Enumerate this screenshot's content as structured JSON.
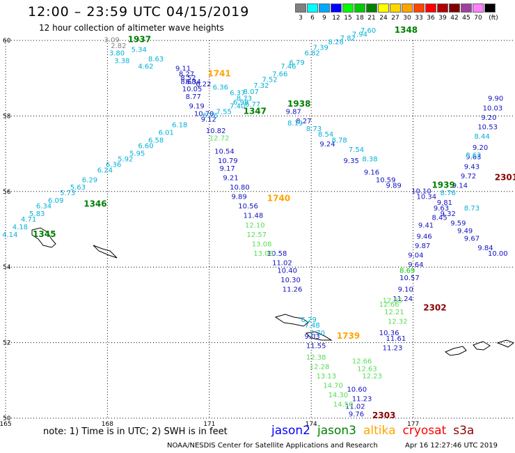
{
  "header": {
    "title": "12:00 – 23:59 UTC 04/15/2019",
    "subtitle": "12 hour collection of altimeter wave heights"
  },
  "legend": {
    "unit": "(ft)",
    "bins": [
      {
        "label": "3",
        "color": "#808080"
      },
      {
        "label": "6",
        "color": "#00ffff"
      },
      {
        "label": "9",
        "color": "#00a8ff"
      },
      {
        "label": "12",
        "color": "#0000ff"
      },
      {
        "label": "15",
        "color": "#00ff00"
      },
      {
        "label": "18",
        "color": "#00cc00"
      },
      {
        "label": "21",
        "color": "#008000"
      },
      {
        "label": "24",
        "color": "#ffff00"
      },
      {
        "label": "27",
        "color": "#ffd700"
      },
      {
        "label": "30",
        "color": "#ffa500"
      },
      {
        "label": "33",
        "color": "#ff4500"
      },
      {
        "label": "36",
        "color": "#ff0000"
      },
      {
        "label": "39",
        "color": "#b00000"
      },
      {
        "label": "42",
        "color": "#800000"
      },
      {
        "label": "45",
        "color": "#a040a0"
      },
      {
        "label": "70",
        "color": "#ff80ff"
      },
      {
        "label": "",
        "color": "#000000"
      }
    ]
  },
  "map": {
    "lon_range": [
      165,
      180
    ],
    "lat_range": [
      50,
      60
    ],
    "lon_ticks": [
      "165",
      "168",
      "171",
      "174",
      "177"
    ],
    "lat_ticks": [
      "60",
      "58",
      "56",
      "54",
      "52",
      "50"
    ],
    "lon_tick_values": [
      165,
      168,
      171,
      174,
      177
    ],
    "lat_tick_values": [
      60,
      58,
      56,
      54,
      52,
      50
    ]
  },
  "tracks": [
    {
      "satellite": "jason2",
      "points": [
        [
          "9.11",
          170.0,
          59.2
        ],
        [
          "8.27",
          170.1,
          59.05
        ],
        [
          "8.52",
          170.15,
          58.95
        ],
        [
          "8.68",
          170.15,
          58.85
        ],
        [
          "6.34",
          170.3,
          58.85
        ],
        [
          "6.22",
          170.6,
          58.78
        ],
        [
          "10.05",
          170.2,
          58.65
        ],
        [
          "8.77",
          170.3,
          58.45
        ],
        [
          "9.19",
          170.4,
          58.2
        ],
        [
          "10.70",
          170.55,
          58.0
        ],
        [
          "9.12",
          170.75,
          57.85
        ],
        [
          "10.82",
          170.9,
          57.55
        ],
        [
          "10.54",
          171.15,
          57.0
        ],
        [
          "10.79",
          171.25,
          56.75
        ],
        [
          "9.17",
          171.3,
          56.55
        ],
        [
          "9.21",
          171.4,
          56.3
        ],
        [
          "10.80",
          171.6,
          56.05
        ],
        [
          "9.89",
          171.65,
          55.8
        ],
        [
          "10.56",
          171.85,
          55.55
        ],
        [
          "11.48",
          172.0,
          55.3
        ],
        [
          "10.58",
          172.7,
          54.3
        ],
        [
          "11.02",
          172.85,
          54.05
        ],
        [
          "10.40",
          173.0,
          53.85
        ],
        [
          "10.30",
          173.1,
          53.6
        ],
        [
          "11.26",
          173.15,
          53.35
        ],
        [
          "9.03",
          173.8,
          52.1
        ],
        [
          "11.55",
          173.85,
          51.85
        ],
        [
          "10.60",
          175.05,
          50.7
        ],
        [
          "11.23",
          175.2,
          50.45
        ],
        [
          "11.02",
          175.0,
          50.25
        ],
        [
          "9.76",
          175.1,
          50.05
        ],
        [
          "10.36",
          176.0,
          52.2
        ],
        [
          "11.23",
          176.1,
          51.8
        ],
        [
          "11.61",
          176.2,
          52.05
        ],
        [
          "11.24",
          176.4,
          53.1
        ],
        [
          "9.10",
          176.55,
          53.35
        ],
        [
          "10.57",
          176.6,
          53.65
        ],
        [
          "9.64",
          176.85,
          54.0
        ],
        [
          "9.04",
          176.85,
          54.25
        ],
        [
          "9.87",
          177.05,
          54.5
        ],
        [
          "9.46",
          177.1,
          54.75
        ],
        [
          "9.41",
          177.15,
          55.05
        ],
        [
          "8.45",
          177.55,
          55.25
        ],
        [
          "9.32",
          177.8,
          55.35
        ],
        [
          "9.63",
          177.6,
          55.5
        ],
        [
          "9.81",
          177.7,
          55.65
        ],
        [
          "10.10",
          176.95,
          55.95
        ],
        [
          "10.34",
          177.1,
          55.8
        ],
        [
          "9.14",
          178.15,
          56.1
        ],
        [
          "9.72",
          178.4,
          56.35
        ],
        [
          "9.43",
          178.5,
          56.6
        ],
        [
          "9.63",
          178.55,
          56.85
        ],
        [
          "9.20",
          178.75,
          57.1
        ],
        [
          "10.53",
          178.9,
          57.65
        ],
        [
          "9.20",
          179.0,
          57.9
        ],
        [
          "10.03",
          179.05,
          58.15
        ],
        [
          "9.90",
          179.2,
          58.4
        ],
        [
          "9.87",
          173.25,
          58.05
        ],
        [
          "8.27",
          173.55,
          57.8
        ],
        [
          "9.24",
          174.25,
          57.2
        ],
        [
          "9.35",
          174.95,
          56.75
        ],
        [
          "9.16",
          175.55,
          56.45
        ],
        [
          "10.59",
          175.9,
          56.25
        ],
        [
          "9.89",
          176.2,
          56.1
        ],
        [
          "9.59",
          178.1,
          55.1
        ],
        [
          "9.49",
          178.3,
          54.9
        ],
        [
          "9.67",
          178.5,
          54.7
        ],
        [
          "9.84",
          178.9,
          54.45
        ],
        [
          "10.00",
          179.2,
          54.3
        ]
      ]
    },
    {
      "satellite": "jason2-cyan",
      "points": [
        [
          "5.34",
          168.7,
          59.7
        ],
        [
          "3.80",
          168.05,
          59.6
        ],
        [
          "3.38",
          168.2,
          59.4
        ],
        [
          "8.63",
          169.2,
          59.45
        ],
        [
          "4.62",
          168.9,
          59.25
        ],
        [
          "6.36",
          171.1,
          58.7
        ],
        [
          "6.37",
          171.6,
          58.55
        ],
        [
          "8.07",
          172.0,
          58.58
        ],
        [
          "8.73",
          171.8,
          58.4
        ],
        [
          "6.98",
          171.7,
          58.3
        ],
        [
          "6.77",
          172.05,
          58.25
        ],
        [
          "7.40",
          171.6,
          58.2
        ],
        [
          "7.55",
          171.2,
          58.05
        ],
        [
          "7.32",
          172.3,
          58.75
        ],
        [
          "7.52",
          172.55,
          58.9
        ],
        [
          "7.66",
          172.85,
          59.05
        ],
        [
          "7.46",
          173.1,
          59.25
        ],
        [
          "6.79",
          173.35,
          59.35
        ],
        [
          "6.82",
          173.8,
          59.6
        ],
        [
          "7.39",
          174.05,
          59.75
        ],
        [
          "8.28",
          174.5,
          59.9
        ],
        [
          "7.82",
          174.85,
          60.0
        ],
        [
          "7.94",
          175.2,
          60.1
        ],
        [
          "7.60",
          175.45,
          60.2
        ],
        [
          "6.18",
          169.9,
          57.7
        ],
        [
          "6.01",
          169.5,
          57.5
        ],
        [
          "6.58",
          169.2,
          57.3
        ],
        [
          "6.60",
          168.9,
          57.15
        ],
        [
          "5.95",
          168.65,
          56.95
        ],
        [
          "5.92",
          168.3,
          56.8
        ],
        [
          "6.36",
          167.95,
          56.65
        ],
        [
          "6.24",
          167.7,
          56.5
        ],
        [
          "6.29",
          167.25,
          56.25
        ],
        [
          "5.63",
          166.9,
          56.05
        ],
        [
          "5.73",
          166.6,
          55.9
        ],
        [
          "6.09",
          166.25,
          55.7
        ],
        [
          "6.34",
          165.9,
          55.55
        ],
        [
          "5.83",
          165.7,
          55.35
        ],
        [
          "4.71",
          165.45,
          55.2
        ],
        [
          "4.18",
          165.2,
          55.0
        ],
        [
          "4.14",
          164.9,
          54.8
        ],
        [
          "8.19",
          173.3,
          57.75
        ],
        [
          "8.73",
          173.85,
          57.6
        ],
        [
          "8.54",
          174.2,
          57.45
        ],
        [
          "8.78",
          174.6,
          57.3
        ],
        [
          "7.54",
          175.1,
          57.05
        ],
        [
          "8.38",
          175.5,
          56.8
        ],
        [
          "8.76",
          177.8,
          55.9
        ],
        [
          "8.73",
          178.5,
          55.5
        ],
        [
          "8.62",
          178.55,
          56.9
        ],
        [
          "8.44",
          178.8,
          57.4
        ],
        [
          "6.29",
          173.7,
          52.55
        ],
        [
          "7.70",
          173.95,
          52.2
        ],
        [
          "7.48",
          173.8,
          52.4
        ],
        [
          "6.76",
          170.8,
          57.95
        ]
      ]
    },
    {
      "satellite": "jason3",
      "points": [
        [
          "12.72",
          171.0,
          57.35
        ],
        [
          "12.10",
          172.05,
          55.05
        ],
        [
          "12.57",
          172.1,
          54.8
        ],
        [
          "13.08",
          172.25,
          54.55
        ],
        [
          "13.08",
          172.3,
          54.3
        ],
        [
          "12.38",
          173.85,
          51.55
        ],
        [
          "12.28",
          173.95,
          51.3
        ],
        [
          "13.13",
          174.15,
          51.05
        ],
        [
          "14.70",
          174.35,
          50.8
        ],
        [
          "14.30",
          174.5,
          50.55
        ],
        [
          "14.50",
          174.65,
          50.3
        ],
        [
          "12.66",
          175.2,
          51.45
        ],
        [
          "12.63",
          175.35,
          51.25
        ],
        [
          "12.23",
          175.5,
          51.05
        ],
        [
          "8.69",
          176.6,
          53.85
        ],
        [
          "12.66",
          176.0,
          52.95
        ],
        [
          "12.85",
          176.1,
          53.05
        ],
        [
          "12.21",
          176.15,
          52.75
        ],
        [
          "12.32",
          176.25,
          52.5
        ]
      ]
    },
    {
      "satellite": "gray",
      "points": [
        [
          "3.09",
          167.9,
          59.95
        ],
        [
          "2.82",
          168.1,
          59.8
        ]
      ]
    }
  ],
  "time_labels": [
    {
      "text": "1937",
      "lon": 168.6,
      "lat": 59.95,
      "color": "#008000"
    },
    {
      "text": "1348",
      "lon": 176.45,
      "lat": 60.2,
      "color": "#008000"
    },
    {
      "text": "1741",
      "lon": 170.95,
      "lat": 59.05,
      "color": "#ffa500"
    },
    {
      "text": "1938",
      "lon": 173.3,
      "lat": 58.25,
      "color": "#008000"
    },
    {
      "text": "1347",
      "lon": 172.0,
      "lat": 58.05,
      "color": "#008000"
    },
    {
      "text": "1346",
      "lon": 167.3,
      "lat": 55.6,
      "color": "#008000"
    },
    {
      "text": "1345",
      "lon": 165.8,
      "lat": 54.8,
      "color": "#008000"
    },
    {
      "text": "1740",
      "lon": 172.7,
      "lat": 55.75,
      "color": "#ffa500"
    },
    {
      "text": "1939",
      "lon": 177.55,
      "lat": 56.1,
      "color": "#008000"
    },
    {
      "text": "2301",
      "lon": 179.4,
      "lat": 56.3,
      "color": "#8b0000"
    },
    {
      "text": "1739",
      "lon": 174.75,
      "lat": 52.1,
      "color": "#ffa500"
    },
    {
      "text": "2302",
      "lon": 177.3,
      "lat": 52.85,
      "color": "#8b0000"
    },
    {
      "text": "2303",
      "lon": 175.8,
      "lat": 50.0,
      "color": "#8b0000"
    }
  ],
  "footer": {
    "note": "note:  1) Time is in UTC;  2) SWH is in feet",
    "satellites": [
      {
        "name": "jason2",
        "color": "#0000ff"
      },
      {
        "name": "jason3",
        "color": "#008000"
      },
      {
        "name": "altika",
        "color": "#ffa500"
      },
      {
        "name": "cryosat",
        "color": "#ff0000"
      },
      {
        "name": "s3a",
        "color": "#8b0000"
      }
    ],
    "credit": "NOAA/NESDIS Center for Satellite Applications and Research",
    "timestamp": "Apr 16 12:27:46 UTC 2019"
  }
}
